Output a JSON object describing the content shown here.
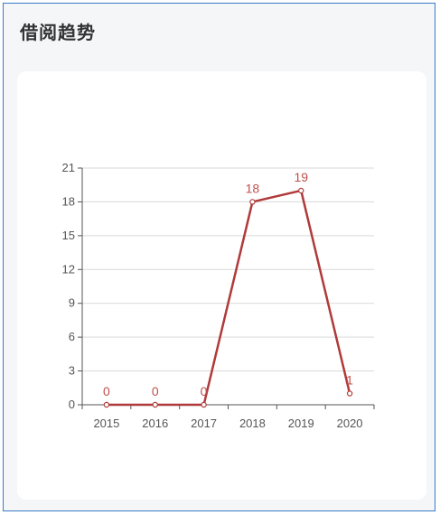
{
  "panel": {
    "title": "借阅趋势"
  },
  "chart_data": {
    "type": "line",
    "title": "",
    "xlabel": "",
    "ylabel": "",
    "categories": [
      "2015",
      "2016",
      "2017",
      "2018",
      "2019",
      "2020"
    ],
    "series": [
      {
        "values": [
          0,
          0,
          0,
          18,
          19,
          1
        ],
        "color": "#b03a3a"
      }
    ],
    "ylim": [
      0,
      21
    ],
    "yticks": [
      0,
      3,
      6,
      9,
      12,
      15,
      18,
      21
    ],
    "grid": true,
    "data_labels": true,
    "legend": "none"
  }
}
